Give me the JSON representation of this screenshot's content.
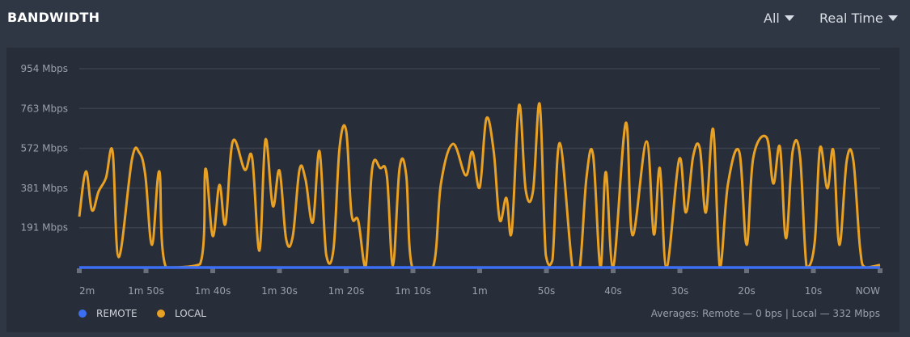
{
  "header": {
    "title": "BANDWIDTH",
    "filter": "All",
    "range": "Real Time"
  },
  "colors": {
    "remote": "#3b6ef2",
    "local": "#e9a124",
    "grid": "#3a414d",
    "tick": "#6a6f78"
  },
  "chart_data": {
    "type": "line",
    "ylim": [
      0,
      954
    ],
    "yticks": [
      {
        "v": 191,
        "label": "191 Mbps"
      },
      {
        "v": 381,
        "label": "381 Mbps"
      },
      {
        "v": 572,
        "label": "572 Mbps"
      },
      {
        "v": 763,
        "label": "763 Mbps"
      },
      {
        "v": 954,
        "label": "954 Mbps"
      }
    ],
    "xlim": [
      120,
      0
    ],
    "xticks": [
      {
        "t": 120,
        "label": "2m"
      },
      {
        "t": 110,
        "label": "1m 50s"
      },
      {
        "t": 100,
        "label": "1m 40s"
      },
      {
        "t": 90,
        "label": "1m 30s"
      },
      {
        "t": 80,
        "label": "1m 20s"
      },
      {
        "t": 70,
        "label": "1m 10s"
      },
      {
        "t": 60,
        "label": "1m"
      },
      {
        "t": 50,
        "label": "50s"
      },
      {
        "t": 40,
        "label": "40s"
      },
      {
        "t": 30,
        "label": "30s"
      },
      {
        "t": 20,
        "label": "20s"
      },
      {
        "t": 10,
        "label": "10s"
      },
      {
        "t": 0,
        "label": "NOW"
      }
    ],
    "grid": true,
    "legend": "bottom-left",
    "series": [
      {
        "name": "REMOTE",
        "points": [
          [
            120,
            0
          ],
          [
            0,
            0
          ]
        ]
      },
      {
        "name": "LOCAL",
        "points": [
          [
            120,
            244
          ],
          [
            119,
            461
          ],
          [
            118.1,
            275
          ],
          [
            117.1,
            365
          ],
          [
            116,
            430
          ],
          [
            115,
            555
          ],
          [
            114.1,
            50
          ],
          [
            112.1,
            520
          ],
          [
            111,
            551
          ],
          [
            110.1,
            442
          ],
          [
            109.1,
            109
          ],
          [
            108,
            461
          ],
          [
            107,
            0
          ],
          [
            101.9,
            16
          ],
          [
            101.1,
            473
          ],
          [
            100,
            151
          ],
          [
            99,
            396
          ],
          [
            98.1,
            209
          ],
          [
            97,
            605
          ],
          [
            95.2,
            469
          ],
          [
            94.1,
            527
          ],
          [
            93,
            81
          ],
          [
            92.1,
            613
          ],
          [
            91,
            295
          ],
          [
            90,
            465
          ],
          [
            89,
            136
          ],
          [
            88,
            151
          ],
          [
            87,
            469
          ],
          [
            86.1,
            423
          ],
          [
            85,
            217
          ],
          [
            84,
            558
          ],
          [
            83,
            62
          ],
          [
            81.9,
            89
          ],
          [
            81,
            574
          ],
          [
            80,
            655
          ],
          [
            79.2,
            256
          ],
          [
            78.2,
            225
          ],
          [
            77.1,
            0
          ],
          [
            76.1,
            477
          ],
          [
            74.9,
            477
          ],
          [
            73.9,
            438
          ],
          [
            73,
            10
          ],
          [
            72,
            477
          ],
          [
            71,
            442
          ],
          [
            70.1,
            0
          ],
          [
            67,
            0
          ],
          [
            65.8,
            403
          ],
          [
            64,
            593
          ],
          [
            62.1,
            442
          ],
          [
            61.1,
            555
          ],
          [
            60,
            384
          ],
          [
            59,
            714
          ],
          [
            57.9,
            558
          ],
          [
            57,
            229
          ],
          [
            56,
            334
          ],
          [
            55.2,
            171
          ],
          [
            54.1,
            779
          ],
          [
            53.1,
            372
          ],
          [
            52,
            368
          ],
          [
            51,
            783
          ],
          [
            50.1,
            62
          ],
          [
            49.1,
            35
          ],
          [
            48,
            597
          ],
          [
            46.1,
            0
          ],
          [
            45,
            0
          ],
          [
            44,
            430
          ],
          [
            43,
            539
          ],
          [
            41.9,
            0
          ],
          [
            41.1,
            458
          ],
          [
            40,
            0
          ],
          [
            38.1,
            694
          ],
          [
            37.1,
            155
          ],
          [
            35,
            605
          ],
          [
            33.9,
            159
          ],
          [
            33,
            477
          ],
          [
            32,
            0
          ],
          [
            30.1,
            520
          ],
          [
            29.1,
            264
          ],
          [
            28,
            535
          ],
          [
            27,
            570
          ],
          [
            26.1,
            264
          ],
          [
            25,
            663
          ],
          [
            24,
            0
          ],
          [
            22.8,
            399
          ],
          [
            21.1,
            555
          ],
          [
            20,
            109
          ],
          [
            19,
            527
          ],
          [
            17,
            624
          ],
          [
            16,
            403
          ],
          [
            15,
            578
          ],
          [
            14.1,
            140
          ],
          [
            13.1,
            558
          ],
          [
            12,
            535
          ],
          [
            11,
            0
          ],
          [
            9.8,
            120
          ],
          [
            9,
            574
          ],
          [
            7.9,
            380
          ],
          [
            7,
            562
          ],
          [
            6.1,
            109
          ],
          [
            5,
            512
          ],
          [
            4,
            512
          ],
          [
            3,
            93
          ],
          [
            2.2,
            0
          ],
          [
            0,
            12
          ]
        ]
      }
    ]
  },
  "legend": {
    "remote": "REMOTE",
    "local": "LOCAL"
  },
  "averages": "Averages: Remote — 0 bps | Local — 332 Mbps"
}
